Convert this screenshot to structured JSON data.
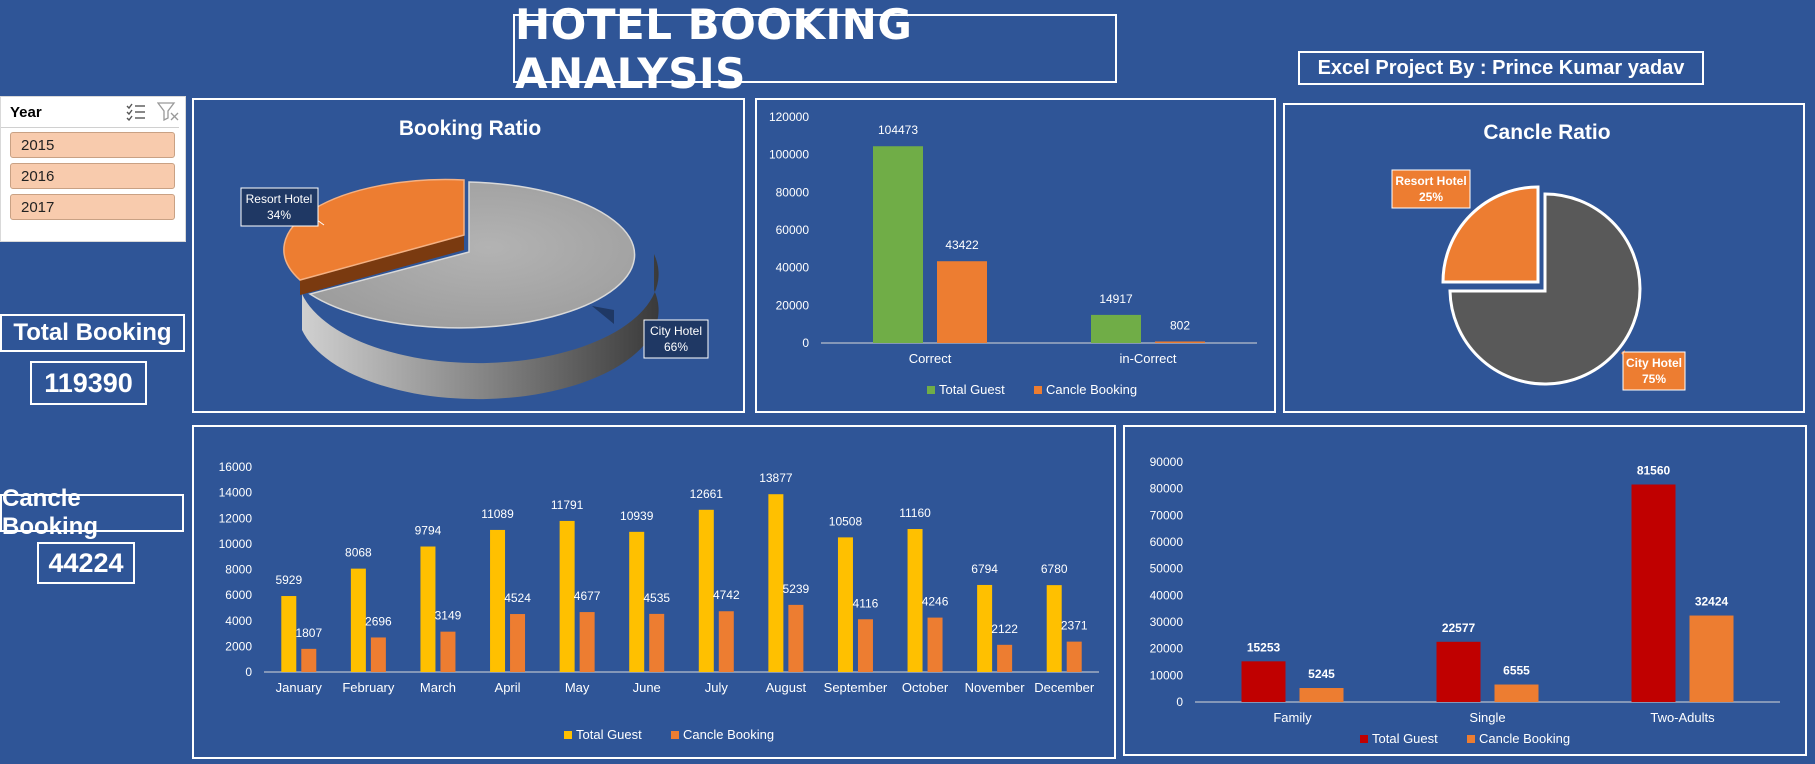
{
  "header": {
    "title": "HOTEL BOOKING ANALYSIS",
    "author": "Excel Project By : Prince Kumar yadav"
  },
  "slicer": {
    "title": "Year",
    "items": [
      "2015",
      "2016",
      "2017"
    ]
  },
  "kpis": {
    "total_booking_label": "Total Booking",
    "total_booking_value": "119390",
    "cancel_booking_label": "Cancle Booking",
    "cancel_booking_value": "44224"
  },
  "colors": {
    "background": "#2f5597",
    "total_guest_green": "#70ad47",
    "cancel_orange": "#ed7d31",
    "city_gray": "#a6a6a6",
    "city_dark": "#595959",
    "total_guest_yellow": "#ffc000",
    "total_guest_red": "#c00000",
    "label_navy": "#1f3864"
  },
  "chart_data": [
    {
      "type": "pie",
      "title": "Booking Ratio",
      "slices": [
        {
          "label": "City Hotel",
          "value": 66,
          "pct_text": "66%"
        },
        {
          "label": "Resort Hotel",
          "value": 34,
          "pct_text": "34%"
        }
      ]
    },
    {
      "type": "bar",
      "title": "",
      "categories": [
        "Correct",
        "in-Correct"
      ],
      "series": [
        {
          "name": "Total Guest",
          "values": [
            104473,
            14917
          ]
        },
        {
          "name": "Cancle Booking",
          "values": [
            43422,
            802
          ]
        }
      ],
      "ylim": [
        0,
        120000
      ],
      "yticks": [
        0,
        20000,
        40000,
        60000,
        80000,
        100000,
        120000
      ],
      "legend": "bottom"
    },
    {
      "type": "pie",
      "title": "Cancle Ratio",
      "slices": [
        {
          "label": "City Hotel",
          "value": 75,
          "pct_text": "75%"
        },
        {
          "label": "Resort Hotel",
          "value": 25,
          "pct_text": "25%"
        }
      ]
    },
    {
      "type": "bar",
      "title": "",
      "categories": [
        "January",
        "February",
        "March",
        "April",
        "May",
        "June",
        "July",
        "August",
        "September",
        "October",
        "November",
        "December"
      ],
      "series": [
        {
          "name": "Total Guest",
          "values": [
            5929,
            8068,
            9794,
            11089,
            11791,
            10939,
            12661,
            13877,
            10508,
            11160,
            6794,
            6780
          ]
        },
        {
          "name": "Cancle Booking",
          "values": [
            1807,
            2696,
            3149,
            4524,
            4677,
            4535,
            4742,
            5239,
            4116,
            4246,
            2122,
            2371
          ]
        }
      ],
      "ylim": [
        0,
        16000
      ],
      "yticks": [
        0,
        2000,
        4000,
        6000,
        8000,
        10000,
        12000,
        14000,
        16000
      ],
      "legend": "bottom"
    },
    {
      "type": "bar",
      "title": "",
      "categories": [
        "Family",
        "Single",
        "Two-Adults"
      ],
      "series": [
        {
          "name": "Total Guest",
          "values": [
            15253,
            22577,
            81560
          ]
        },
        {
          "name": "Cancle Booking",
          "values": [
            5245,
            6555,
            32424
          ]
        }
      ],
      "ylim": [
        0,
        90000
      ],
      "yticks": [
        0,
        10000,
        20000,
        30000,
        40000,
        50000,
        60000,
        70000,
        80000,
        90000
      ],
      "legend": "bottom"
    }
  ]
}
